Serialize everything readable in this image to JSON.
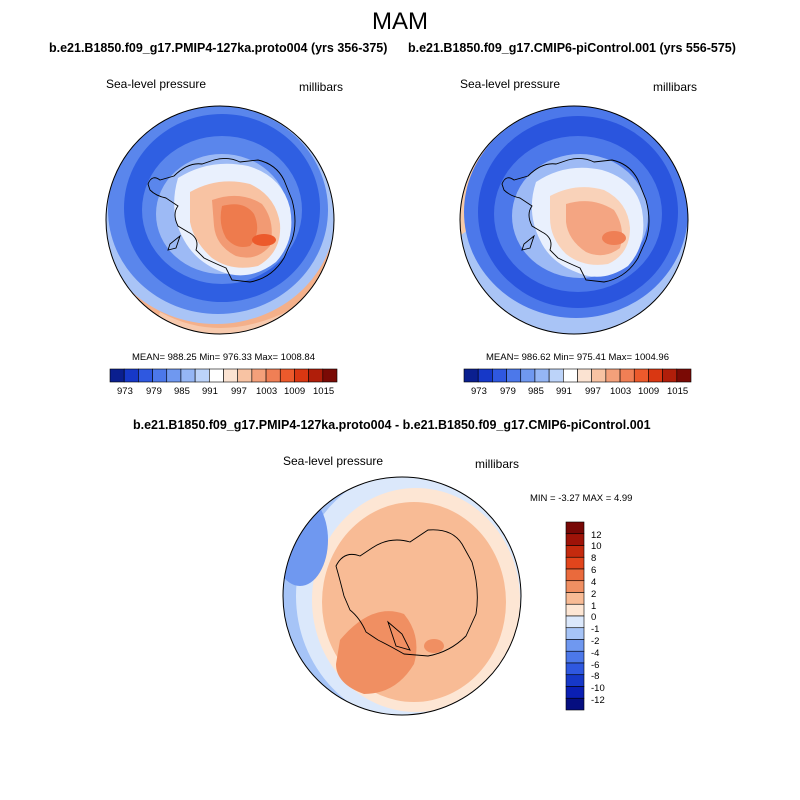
{
  "page": {
    "season": "MAM"
  },
  "panels": [
    {
      "run_title": "b.e21.B1850.f09_g17.PMIP4-127ka.proto004 (yrs 356-375)",
      "left_label": "Sea-level pressure",
      "right_label": "millibars",
      "stats": "MEAN= 988.25  Min= 976.33  Max= 1008.84",
      "cb_labels": [
        "973",
        "979",
        "985",
        "991",
        "997",
        "1003",
        "1009",
        "1015"
      ]
    },
    {
      "run_title": "b.e21.B1850.f09_g17.CMIP6-piControl.001 (yrs 556-575)",
      "left_label": "Sea-level pressure",
      "right_label": "millibars",
      "stats": "MEAN= 986.62  Min= 975.41  Max= 1004.96",
      "cb_labels": [
        "973",
        "979",
        "985",
        "991",
        "997",
        "1003",
        "1009",
        "1015"
      ]
    }
  ],
  "difference": {
    "title": "b.e21.B1850.f09_g17.PMIP4-127ka.proto004 - b.e21.B1850.f09_g17.CMIP6-piControl.001",
    "left_label": "Sea-level pressure",
    "right_label": "millibars",
    "stats": "MIN =  -3.27 MAX =   4.99",
    "cb_labels": [
      "12",
      "10",
      "8",
      "6",
      "4",
      "2",
      "1",
      "0",
      "-1",
      "-2",
      "-4",
      "-6",
      "-8",
      "-10",
      "-12"
    ]
  },
  "chart_data": [
    {
      "type": "heatmap",
      "projection": "south polar stereographic",
      "title": "b.e21.B1850.f09_g17.PMIP4-127ka.proto004 (yrs 356-375)",
      "variable": "Sea-level pressure",
      "units": "millibars",
      "mean": 988.25,
      "min": 976.33,
      "max": 1008.84,
      "contour_levels": [
        973,
        976,
        979,
        982,
        985,
        988,
        991,
        994,
        997,
        1000,
        1003,
        1006,
        1009,
        1012,
        1015
      ],
      "colors": [
        "#0a1f8f",
        "#1638c8",
        "#2f58e0",
        "#4c78ea",
        "#6f98f0",
        "#95b6f5",
        "#bcd3f9",
        "#ffffff",
        "#fbe3d2",
        "#f8c3a3",
        "#f4a07a",
        "#f07f55",
        "#ec5a2c",
        "#d93712",
        "#b01e0a",
        "#7a0a05"
      ]
    },
    {
      "type": "heatmap",
      "projection": "south polar stereographic",
      "title": "b.e21.B1850.f09_g17.CMIP6-piControl.001 (yrs 556-575)",
      "variable": "Sea-level pressure",
      "units": "millibars",
      "mean": 986.62,
      "min": 975.41,
      "max": 1004.96,
      "contour_levels": [
        973,
        976,
        979,
        982,
        985,
        988,
        991,
        994,
        997,
        1000,
        1003,
        1006,
        1009,
        1012,
        1015
      ],
      "colors": [
        "#0a1f8f",
        "#1638c8",
        "#2f58e0",
        "#4c78ea",
        "#6f98f0",
        "#95b6f5",
        "#bcd3f9",
        "#ffffff",
        "#fbe3d2",
        "#f8c3a3",
        "#f4a07a",
        "#f07f55",
        "#ec5a2c",
        "#d93712",
        "#b01e0a",
        "#7a0a05"
      ]
    },
    {
      "type": "heatmap",
      "projection": "south polar stereographic",
      "title": "b.e21.B1850.f09_g17.PMIP4-127ka.proto004 - b.e21.B1850.f09_g17.CMIP6-piControl.001",
      "variable": "Sea-level pressure",
      "units": "millibars",
      "min": -3.27,
      "max": 4.99,
      "contour_levels": [
        -12,
        -10,
        -8,
        -6,
        -4,
        -2,
        -1,
        0,
        1,
        2,
        4,
        6,
        8,
        10,
        12
      ],
      "colors": [
        "#050e80",
        "#0a1fb4",
        "#1638c8",
        "#2f58e0",
        "#4c78ea",
        "#6f98f0",
        "#a6c4f7",
        "#dbe8fb",
        "#fde6d4",
        "#f8bb95",
        "#f08f62",
        "#ea6a3c",
        "#e2451c",
        "#c42a0e",
        "#9e1308",
        "#780806"
      ]
    }
  ]
}
